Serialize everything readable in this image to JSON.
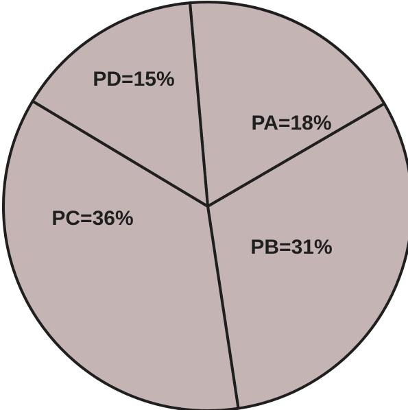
{
  "chart_data": {
    "type": "pie",
    "slices": [
      {
        "label": "PA",
        "value": 18,
        "text": "PA=18%"
      },
      {
        "label": "PB",
        "value": 31,
        "text": "PB=31%"
      },
      {
        "label": "PC",
        "value": 36,
        "text": "PC=36%"
      },
      {
        "label": "PD",
        "value": 15,
        "text": "PD=15%"
      }
    ],
    "fill_color": "#c4b4b4",
    "edge_color": "#1f1f1f",
    "title": "",
    "legend": "none"
  }
}
